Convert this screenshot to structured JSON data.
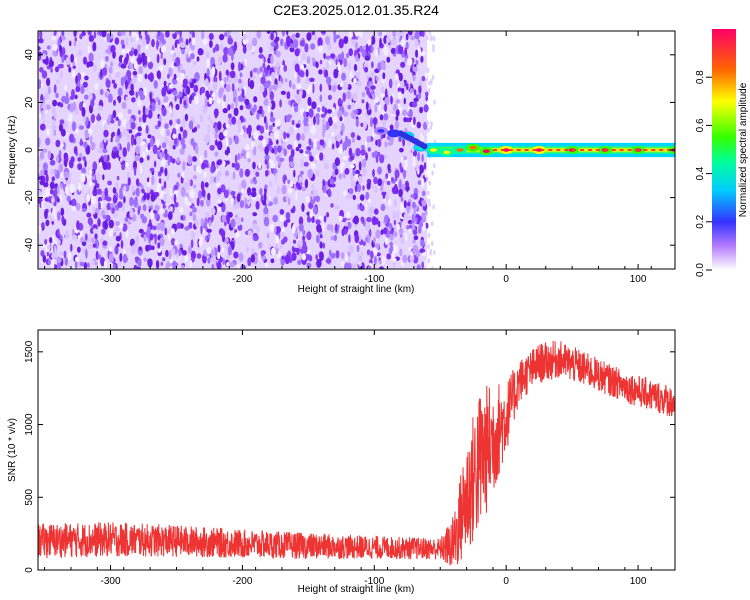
{
  "page_title": "C2E3.2025.012.01.35.R24",
  "chart_data": [
    {
      "type": "heatmap",
      "title": "C2E3.2025.012.01.35.R24",
      "xlabel": "Height of straight line (km)",
      "ylabel": "Frequency (Hz)",
      "xlim": [
        -355,
        128
      ],
      "ylim": [
        -50,
        50
      ],
      "x_ticks": [
        -300,
        -200,
        -100,
        0,
        100
      ],
      "x_tick_labels": [
        "-300",
        "-200",
        "-100",
        "0",
        "100"
      ],
      "y_ticks": [
        -40,
        -20,
        0,
        20,
        40
      ],
      "y_tick_labels": [
        "-40",
        "-20",
        "0",
        "20",
        "40"
      ],
      "noise_region_x": [
        -355,
        -60
      ],
      "signal_track": [
        {
          "x": -95,
          "y": 8,
          "amp": 0.15
        },
        {
          "x": -85,
          "y": 7,
          "amp": 0.2
        },
        {
          "x": -75,
          "y": 6,
          "amp": 0.45
        },
        {
          "x": -65,
          "y": 1,
          "amp": 0.35
        },
        {
          "x": -55,
          "y": 0,
          "amp": 0.6
        },
        {
          "x": -45,
          "y": -1,
          "amp": 0.7
        },
        {
          "x": -35,
          "y": 0,
          "amp": 0.75
        },
        {
          "x": -25,
          "y": 1,
          "amp": 0.8
        },
        {
          "x": -15,
          "y": -0.5,
          "amp": 0.85
        },
        {
          "x": 0,
          "y": 0,
          "amp": 0.95
        },
        {
          "x": 25,
          "y": 0,
          "amp": 0.95
        },
        {
          "x": 50,
          "y": 0,
          "amp": 0.9
        },
        {
          "x": 75,
          "y": 0,
          "amp": 0.9
        },
        {
          "x": 100,
          "y": 0,
          "amp": 0.85
        },
        {
          "x": 128,
          "y": 0,
          "amp": 0.85
        }
      ],
      "colorbar": {
        "label": "Normalized spectral amplitude",
        "ticks": [
          0.0,
          0.2,
          0.4,
          0.6,
          0.8
        ],
        "tick_labels": [
          "0.0",
          "0.2",
          "0.4",
          "0.6",
          "0.8"
        ],
        "range": [
          0,
          1
        ]
      }
    },
    {
      "type": "line",
      "xlabel": "Height of straight line (km)",
      "ylabel": "SNR (10 * v/v)",
      "xlim": [
        -355,
        128
      ],
      "ylim": [
        0,
        1650
      ],
      "x_ticks": [
        -300,
        -200,
        -100,
        0,
        100
      ],
      "x_tick_labels": [
        "-300",
        "-200",
        "-100",
        "0",
        "100"
      ],
      "y_ticks": [
        0,
        500,
        1000,
        1500
      ],
      "y_tick_labels": [
        "0",
        "500",
        "1000",
        "1500"
      ],
      "series": [
        {
          "name": "SNR",
          "color": "#ee3333",
          "envelope": {
            "x": [
              -355,
              -300,
              -250,
              -200,
              -150,
              -100,
              -50,
              -40,
              -30,
              -20,
              -10,
              0,
              10,
              25,
              40,
              60,
              80,
              100,
              128
            ],
            "mean": [
              200,
              210,
              200,
              180,
              165,
              155,
              145,
              180,
              500,
              750,
              900,
              1050,
              1300,
              1420,
              1450,
              1380,
              1300,
              1230,
              1150
            ],
            "spread": [
              120,
              120,
              110,
              100,
              90,
              80,
              75,
              200,
              420,
              500,
              400,
              250,
              150,
              140,
              130,
              120,
              110,
              110,
              110
            ]
          }
        }
      ]
    }
  ],
  "colors": {
    "noise": "#7b2cf0",
    "snr_line": "#ee3333"
  }
}
